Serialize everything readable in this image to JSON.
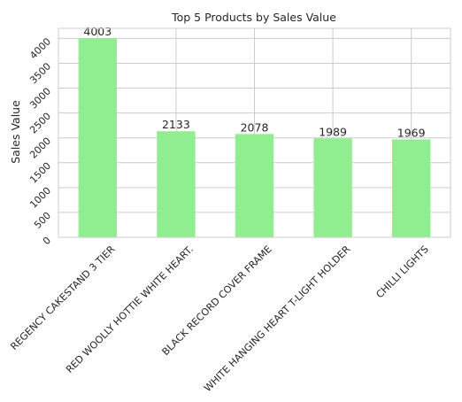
{
  "chart_data": {
    "type": "bar",
    "title": "Top 5 Products by Sales Value",
    "xlabel": "",
    "ylabel": "Sales Value",
    "categories": [
      "REGENCY CAKESTAND 3 TIER",
      "RED WOOLLY HOTTIE WHITE HEART.",
      "BLACK RECORD COVER FRAME",
      "WHITE HANGING HEART T-LIGHT HOLDER",
      "CHILLI LIGHTS"
    ],
    "values": [
      4003,
      2133,
      2078,
      1989,
      1969
    ],
    "data_labels": [
      "4003",
      "2133",
      "2078",
      "1989",
      "1969"
    ],
    "yticks": [
      0,
      500,
      1000,
      1500,
      2000,
      2500,
      3000,
      3500,
      4000
    ],
    "ylim": [
      0,
      4203
    ],
    "grid": true,
    "bar_color": "#90ee90",
    "grid_color": "#cccccc",
    "text_color": "#262626",
    "x_tick_rotation_deg": 45,
    "y_tick_rotation_deg": 45
  }
}
